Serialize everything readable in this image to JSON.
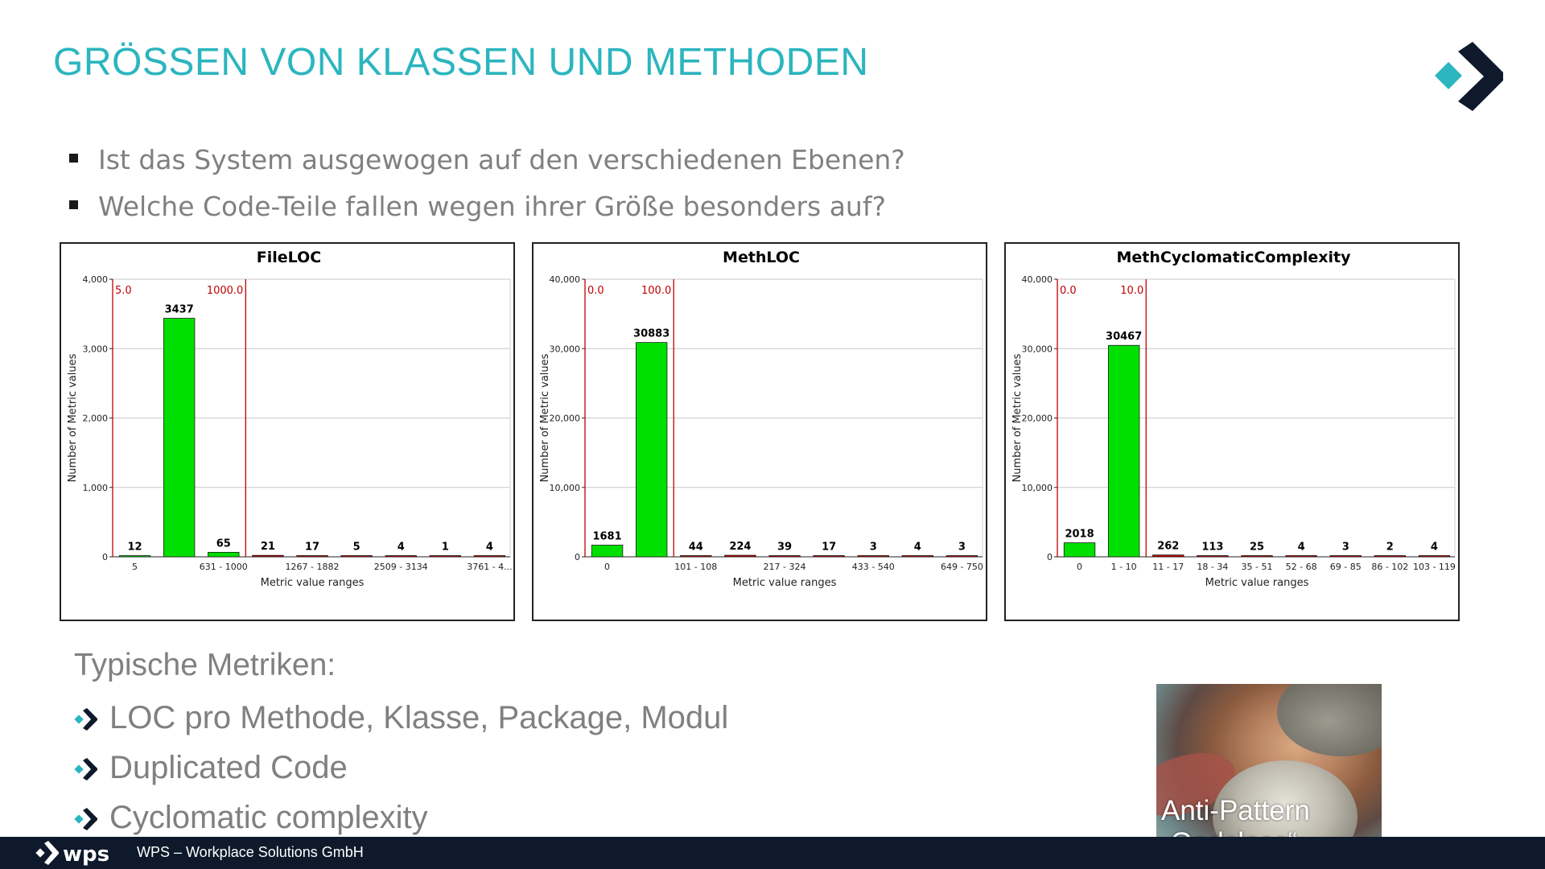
{
  "slide": {
    "title": "GRÖSSEN VON KLASSEN UND METHODEN",
    "bullets": [
      "Ist das System ausgewogen auf den verschiedenen Ebenen?",
      "Welche Code-Teile fallen wegen ihrer Größe besonders auf?"
    ],
    "metrics_heading": "Typische Metriken:",
    "metrics": [
      "LOC pro Methode, Klasse, Package, Modul",
      "Duplicated Code",
      "Cyclomatic complexity"
    ],
    "image_caption_line1": "Anti-Pattern",
    "image_caption_line2": "„Godclass“",
    "footer_brand": "wps",
    "footer_text": "WPS – Workplace Solutions GmbH",
    "accent_color": "#2bb5bf",
    "footer_color": "#0e1a2b"
  },
  "chart_data": [
    {
      "type": "bar",
      "title": "FileLOC",
      "xlabel": "Metric value ranges",
      "ylabel": "Number of Metric values",
      "ylim": [
        0,
        4000
      ],
      "yticks": [
        "0",
        "1,000",
        "2,000",
        "3,000",
        "4,000"
      ],
      "values": [
        12,
        3437,
        65,
        21,
        17,
        5,
        4,
        1,
        4
      ],
      "bar_colors": [
        "#00e000",
        "#00e000",
        "#00e000",
        "#cc0000",
        "#cc0000",
        "#cc0000",
        "#cc0000",
        "#cc0000",
        "#cc0000"
      ],
      "x_tick_labels": [
        {
          "index": 0,
          "label": "5"
        },
        {
          "index": 2,
          "label": "631 - 1000"
        },
        {
          "index": 4,
          "label": "1267 - 1882"
        },
        {
          "index": 6,
          "label": "2509 - 3134"
        },
        {
          "index": 8,
          "label": "3761 - 4..."
        }
      ],
      "thresholds": [
        {
          "label": "5.0",
          "after_index": -1
        },
        {
          "label": "1000.0",
          "after_index": 2
        }
      ]
    },
    {
      "type": "bar",
      "title": "MethLOC",
      "xlabel": "Metric value ranges",
      "ylabel": "Number of Metric values",
      "ylim": [
        0,
        40000
      ],
      "yticks": [
        "0",
        "10,000",
        "20,000",
        "30,000",
        "40,000"
      ],
      "values": [
        1681,
        30883,
        44,
        224,
        39,
        17,
        3,
        4,
        3
      ],
      "bar_colors": [
        "#00e000",
        "#00e000",
        "#cc0000",
        "#cc0000",
        "#cc0000",
        "#cc0000",
        "#cc0000",
        "#cc0000",
        "#cc0000"
      ],
      "x_tick_labels": [
        {
          "index": 0,
          "label": "0"
        },
        {
          "index": 2,
          "label": "101 - 108"
        },
        {
          "index": 4,
          "label": "217 - 324"
        },
        {
          "index": 6,
          "label": "433 - 540"
        },
        {
          "index": 8,
          "label": "649 - 750"
        }
      ],
      "thresholds": [
        {
          "label": "0.0",
          "after_index": -1
        },
        {
          "label": "100.0",
          "after_index": 1
        }
      ]
    },
    {
      "type": "bar",
      "title": "MethCyclomaticComplexity",
      "xlabel": "Metric value ranges",
      "ylabel": "Number of Metric values",
      "ylim": [
        0,
        40000
      ],
      "yticks": [
        "0",
        "10,000",
        "20,000",
        "30,000",
        "40,000"
      ],
      "values": [
        2018,
        30467,
        262,
        113,
        25,
        4,
        3,
        2,
        4
      ],
      "bar_colors": [
        "#00e000",
        "#00e000",
        "#cc0000",
        "#cc0000",
        "#cc0000",
        "#cc0000",
        "#cc0000",
        "#cc0000",
        "#cc0000"
      ],
      "x_tick_labels": [
        {
          "index": 0,
          "label": "0"
        },
        {
          "index": 1,
          "label": "1 - 10"
        },
        {
          "index": 2,
          "label": "11 - 17"
        },
        {
          "index": 3,
          "label": "18 - 34"
        },
        {
          "index": 4,
          "label": "35 - 51"
        },
        {
          "index": 5,
          "label": "52 - 68"
        },
        {
          "index": 6,
          "label": "69 - 85"
        },
        {
          "index": 7,
          "label": "86 - 102"
        },
        {
          "index": 8,
          "label": "103 - 119"
        }
      ],
      "thresholds": [
        {
          "label": "0.0",
          "after_index": -1
        },
        {
          "label": "10.0",
          "after_index": 1
        }
      ]
    }
  ]
}
